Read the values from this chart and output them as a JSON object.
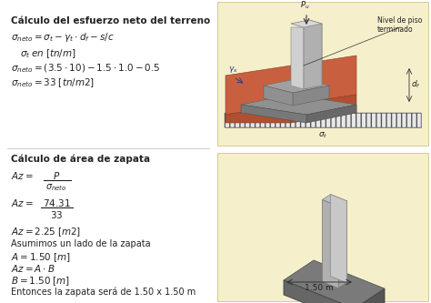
{
  "bg_color": "#ffffff",
  "title1": "Cálculo del esfuerzo neto del terreno",
  "title2": "Cálculo de área de zapata",
  "line1_1": "$\\sigma_{neto} = \\sigma_t - \\gamma_t \\cdot d_f - s/c$",
  "line1_2": "$\\sigma_t \\; en \\; [tn/m]$",
  "line1_3": "$\\sigma_{neto} = (3.5 \\cdot 10) - 1.5 \\cdot 1.0 - 0.5$",
  "line1_4": "$\\sigma_{neto} = 33 \\; [tn/m2]$",
  "frac1_num": "P",
  "frac1_den": "$\\sigma_{neto}$",
  "frac2_num": "74.31",
  "frac2_den": "33",
  "line2_1": "$Az = 2.25 \\; [m2]$",
  "line2_2": "Asumimos un lado de la zapata",
  "line2_3": "$A = 1.50 \\; [m]$",
  "line2_4": "$Az = A \\cdot B$",
  "line2_5": "$B = 1.50 \\; [m]$",
  "line2_6": "Entonces la zapata será de 1.50 x 1.50 m",
  "img1_bg": "#f5efcc",
  "img2_bg": "#f5efcc",
  "col_light": "#c8c8c8",
  "col_dark": "#909090",
  "col_side": "#a8a8a8",
  "brick_front": "#b05030",
  "brick_top": "#c86040",
  "brick_side": "#8b3820",
  "concrete_top": "#888888",
  "concrete_front": "#686868",
  "concrete_side": "#505050",
  "hatch_col": "#444444",
  "text_color": "#222222",
  "dim_color": "#333333"
}
